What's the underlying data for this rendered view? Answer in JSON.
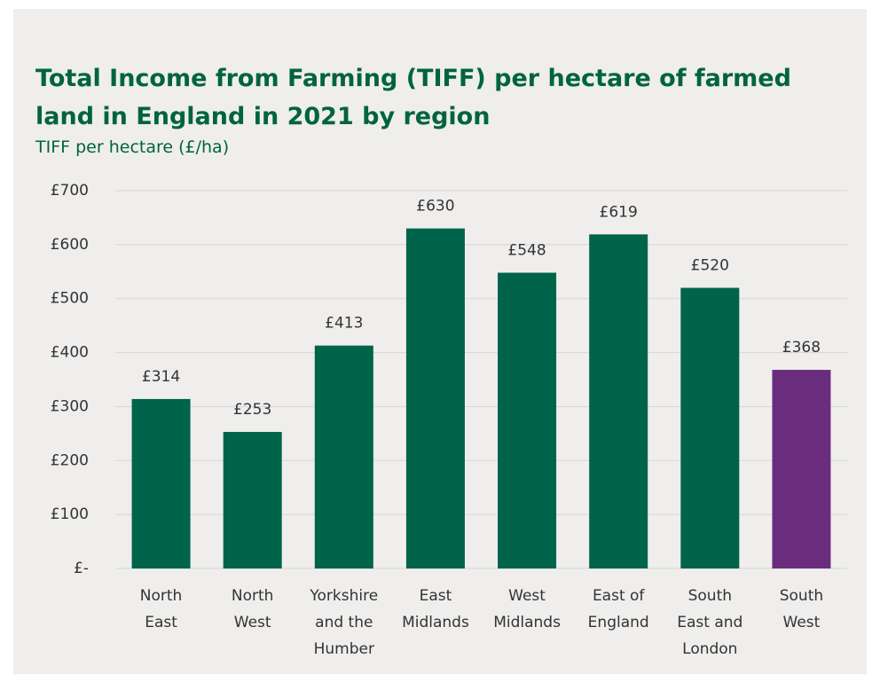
{
  "chart_data": {
    "type": "bar",
    "title": [
      "Total Income from Farming (TIFF) per hectare of farmed",
      "land in England in 2021 by region"
    ],
    "subtitle": "TIFF per hectare (£/ha)",
    "categories": [
      [
        "North",
        "East"
      ],
      [
        "North",
        "West"
      ],
      [
        "Yorkshire",
        "and the",
        "Humber"
      ],
      [
        "East",
        "Midlands"
      ],
      [
        "West",
        "Midlands"
      ],
      [
        "East of",
        "England"
      ],
      [
        "South",
        "East and",
        "London"
      ],
      [
        "South",
        "West"
      ]
    ],
    "values": [
      314,
      253,
      413,
      630,
      548,
      619,
      520,
      368
    ],
    "value_labels": [
      "£314",
      "£253",
      "£413",
      "£630",
      "£548",
      "£619",
      "£520",
      "£368"
    ],
    "colors": [
      "#00644a",
      "#00644a",
      "#00644a",
      "#00644a",
      "#00644a",
      "#00644a",
      "#00644a",
      "#6a2d7d"
    ],
    "ylim": [
      0,
      700
    ],
    "yticks": [
      {
        "value": 0,
        "label": "£-"
      },
      {
        "value": 100,
        "label": "£100"
      },
      {
        "value": 200,
        "label": "£200"
      },
      {
        "value": 300,
        "label": "£300"
      },
      {
        "value": 400,
        "label": "£400"
      },
      {
        "value": 500,
        "label": "£500"
      },
      {
        "value": 600,
        "label": "£600"
      },
      {
        "value": 700,
        "label": "£700"
      }
    ],
    "grid": true
  }
}
